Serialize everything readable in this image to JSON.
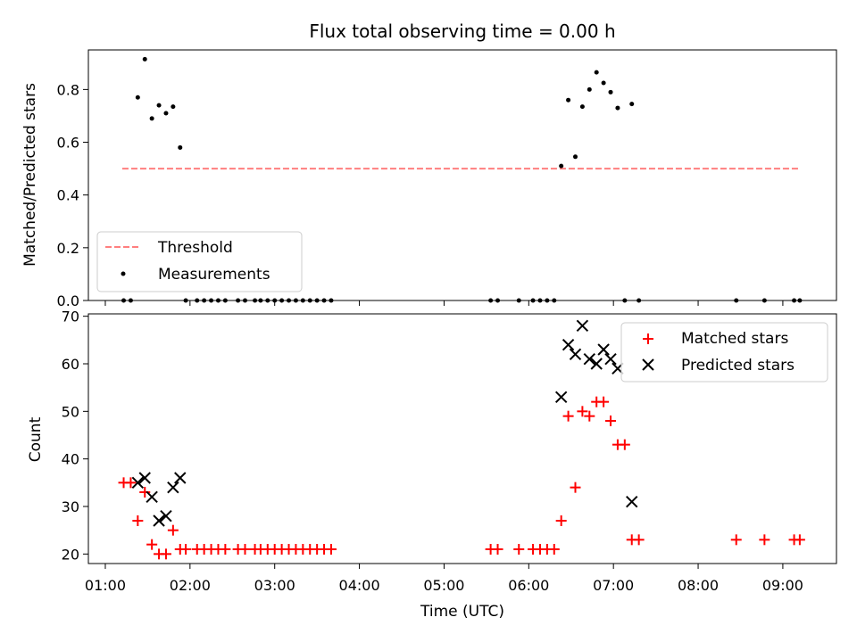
{
  "chart_data": [
    {
      "type": "scatter",
      "title": "Flux total observing time = 0.00 h",
      "xlabel": "",
      "ylabel": "Matched/Predicted stars",
      "xlim": [
        "00:48",
        "09:38"
      ],
      "ylim": [
        0,
        0.95
      ],
      "yticks": [
        0.0,
        0.2,
        0.4,
        0.6,
        0.8
      ],
      "yticklabels": [
        "0.0",
        "0.2",
        "0.4",
        "0.6",
        "0.8"
      ],
      "grid": false,
      "legend_position": "lower-left",
      "series": [
        {
          "name": "Threshold",
          "kind": "line",
          "style": "dashed",
          "color": "#ff7f7f",
          "x": [
            "01:12",
            "09:12"
          ],
          "y": [
            0.5,
            0.5
          ]
        },
        {
          "name": "Measurements",
          "kind": "scatter",
          "marker": "dot",
          "color": "#000000",
          "points": [
            [
              "01:13",
              0
            ],
            [
              "01:18",
              0
            ],
            [
              "01:23",
              0.77
            ],
            [
              "01:28",
              0.915
            ],
            [
              "01:33",
              0.69
            ],
            [
              "01:38",
              0.74
            ],
            [
              "01:43",
              0.71
            ],
            [
              "01:48",
              0.735
            ],
            [
              "01:53",
              0.58
            ],
            [
              "01:57",
              0
            ],
            [
              "02:05",
              0
            ],
            [
              "02:10",
              0
            ],
            [
              "02:15",
              0
            ],
            [
              "02:20",
              0
            ],
            [
              "02:25",
              0
            ],
            [
              "02:34",
              0
            ],
            [
              "02:39",
              0
            ],
            [
              "02:46",
              0
            ],
            [
              "02:50",
              0
            ],
            [
              "02:55",
              0
            ],
            [
              "03:00",
              0
            ],
            [
              "03:05",
              0
            ],
            [
              "03:10",
              0
            ],
            [
              "03:15",
              0
            ],
            [
              "03:20",
              0
            ],
            [
              "03:25",
              0
            ],
            [
              "03:30",
              0
            ],
            [
              "03:35",
              0
            ],
            [
              "03:40",
              0
            ],
            [
              "05:33",
              0
            ],
            [
              "05:38",
              0
            ],
            [
              "05:53",
              0
            ],
            [
              "06:03",
              0
            ],
            [
              "06:08",
              0
            ],
            [
              "06:13",
              0
            ],
            [
              "06:18",
              0
            ],
            [
              "06:23",
              0.51
            ],
            [
              "06:28",
              0.76
            ],
            [
              "06:33",
              0.545
            ],
            [
              "06:38",
              0.735
            ],
            [
              "06:43",
              0.8
            ],
            [
              "06:48",
              0.865
            ],
            [
              "06:53",
              0.825
            ],
            [
              "06:58",
              0.79
            ],
            [
              "07:03",
              0.73
            ],
            [
              "07:08",
              0
            ],
            [
              "07:13",
              0.745
            ],
            [
              "07:18",
              0
            ],
            [
              "08:27",
              0
            ],
            [
              "08:47",
              0
            ],
            [
              "09:08",
              0
            ],
            [
              "09:12",
              0
            ]
          ]
        }
      ]
    },
    {
      "type": "scatter",
      "title": "",
      "xlabel": "Time (UTC)",
      "ylabel": "Count",
      "xlim": [
        "00:48",
        "09:38"
      ],
      "ylim": [
        18,
        70.5
      ],
      "xticks": [
        "01:00",
        "02:00",
        "03:00",
        "04:00",
        "05:00",
        "06:00",
        "07:00",
        "08:00",
        "09:00"
      ],
      "yticks": [
        20,
        30,
        40,
        50,
        60,
        70
      ],
      "yticklabels": [
        "20",
        "30",
        "40",
        "50",
        "60",
        "70"
      ],
      "grid": false,
      "legend_position": "upper-right",
      "series": [
        {
          "name": "Matched stars",
          "kind": "scatter",
          "marker": "plus",
          "color": "#ff0000",
          "points": [
            [
              "01:13",
              35
            ],
            [
              "01:18",
              35
            ],
            [
              "01:23",
              27
            ],
            [
              "01:28",
              33
            ],
            [
              "01:33",
              22
            ],
            [
              "01:38",
              20
            ],
            [
              "01:43",
              20
            ],
            [
              "01:48",
              25
            ],
            [
              "01:53",
              21
            ],
            [
              "01:57",
              21
            ],
            [
              "02:05",
              21
            ],
            [
              "02:10",
              21
            ],
            [
              "02:15",
              21
            ],
            [
              "02:20",
              21
            ],
            [
              "02:25",
              21
            ],
            [
              "02:34",
              21
            ],
            [
              "02:39",
              21
            ],
            [
              "02:46",
              21
            ],
            [
              "02:50",
              21
            ],
            [
              "02:55",
              21
            ],
            [
              "03:00",
              21
            ],
            [
              "03:05",
              21
            ],
            [
              "03:10",
              21
            ],
            [
              "03:15",
              21
            ],
            [
              "03:20",
              21
            ],
            [
              "03:25",
              21
            ],
            [
              "03:30",
              21
            ],
            [
              "03:35",
              21
            ],
            [
              "03:40",
              21
            ],
            [
              "05:33",
              21
            ],
            [
              "05:38",
              21
            ],
            [
              "05:53",
              21
            ],
            [
              "06:03",
              21
            ],
            [
              "06:08",
              21
            ],
            [
              "06:13",
              21
            ],
            [
              "06:18",
              21
            ],
            [
              "06:23",
              27
            ],
            [
              "06:28",
              49
            ],
            [
              "06:33",
              34
            ],
            [
              "06:38",
              50
            ],
            [
              "06:43",
              49
            ],
            [
              "06:48",
              52
            ],
            [
              "06:53",
              52
            ],
            [
              "06:58",
              48
            ],
            [
              "07:03",
              43
            ],
            [
              "07:08",
              43
            ],
            [
              "07:13",
              23
            ],
            [
              "07:18",
              23
            ],
            [
              "08:27",
              23
            ],
            [
              "08:47",
              23
            ],
            [
              "09:08",
              23
            ],
            [
              "09:12",
              23
            ]
          ]
        },
        {
          "name": "Predicted stars",
          "kind": "scatter",
          "marker": "x",
          "color": "#000000",
          "points": [
            [
              "01:23",
              35
            ],
            [
              "01:28",
              36
            ],
            [
              "01:33",
              32
            ],
            [
              "01:38",
              27
            ],
            [
              "01:43",
              28
            ],
            [
              "01:48",
              34
            ],
            [
              "01:53",
              36
            ],
            [
              "06:23",
              53
            ],
            [
              "06:28",
              64
            ],
            [
              "06:33",
              62
            ],
            [
              "06:38",
              68
            ],
            [
              "06:43",
              61
            ],
            [
              "06:48",
              60
            ],
            [
              "06:53",
              63
            ],
            [
              "06:58",
              61
            ],
            [
              "07:03",
              59
            ],
            [
              "07:13",
              31
            ]
          ]
        }
      ]
    }
  ]
}
